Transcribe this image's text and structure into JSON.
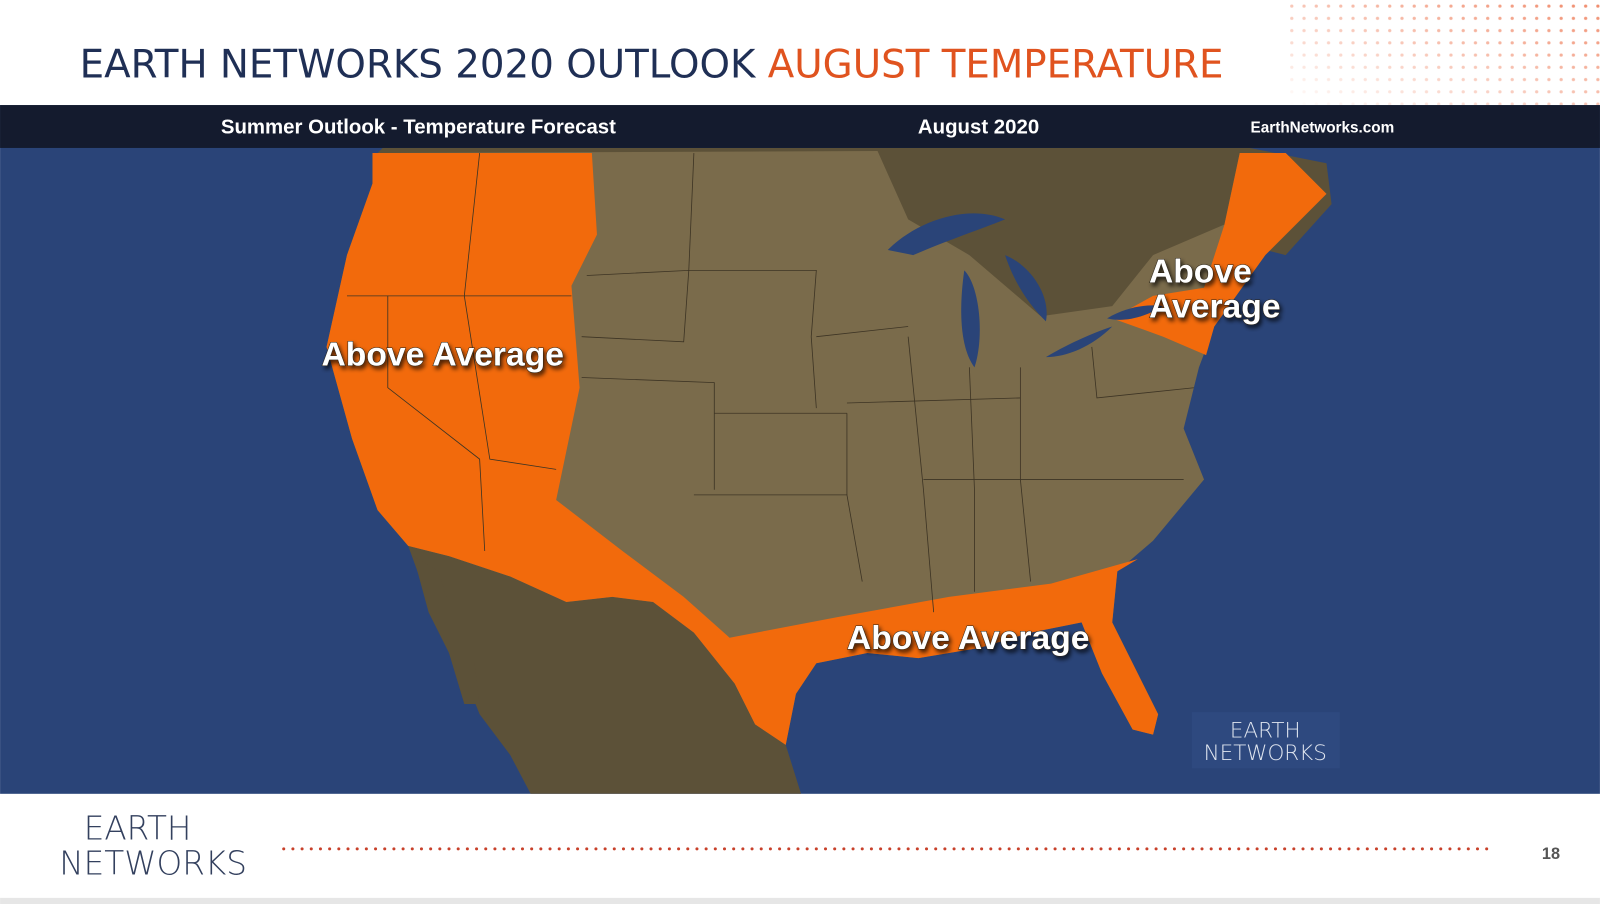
{
  "header": {
    "title": "EARTH NETWORKS 2020 OUTLOOK",
    "title_highlight": "AUGUST TEMPERATURE"
  },
  "map": {
    "banner": {
      "left": "Summer Outlook - Temperature Forecast",
      "center": "August 2020",
      "right": "EarthNetworks.com"
    },
    "labels": [
      "Above Average",
      "Above",
      "Average",
      "Above Average"
    ],
    "watermark": {
      "line1": "EARTH",
      "line2": "NETWORKS"
    }
  },
  "footer": {
    "logo": {
      "line1": "EARTH",
      "line2": "NETWORKS"
    },
    "page_number": "18"
  }
}
